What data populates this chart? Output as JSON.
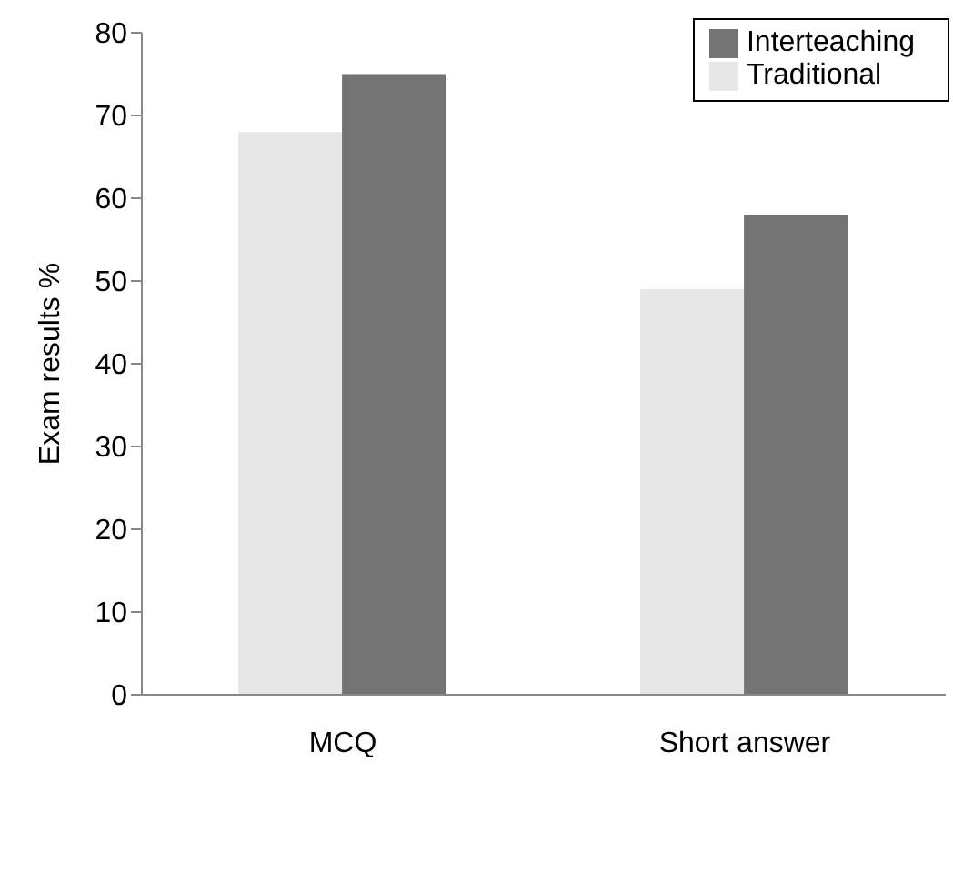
{
  "chart_data": {
    "type": "bar",
    "ylabel": "Exam results %",
    "categories": [
      "MCQ",
      "Short answer"
    ],
    "series": [
      {
        "name": "Traditional",
        "color": "#e6e6e6",
        "values": [
          68,
          49
        ]
      },
      {
        "name": "Interteaching",
        "color": "#737373",
        "values": [
          75,
          58
        ]
      }
    ],
    "ylim": [
      0,
      80
    ],
    "yticks": [
      0,
      10,
      20,
      30,
      40,
      50,
      60,
      70,
      80
    ],
    "grid": false,
    "legend": "top right"
  }
}
